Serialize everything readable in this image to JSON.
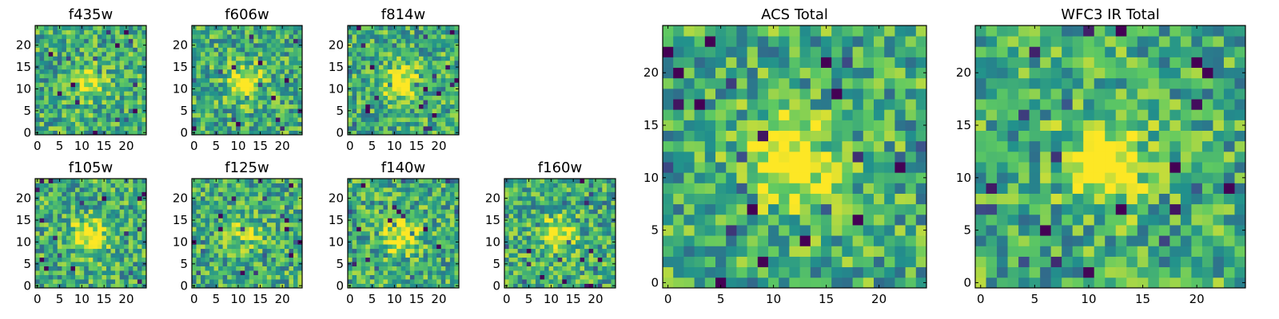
{
  "chart_data": [
    {
      "type": "heatmap",
      "title": "f435w",
      "grid_size": 25,
      "xticks": [
        0,
        5,
        10,
        15,
        20
      ],
      "yticks": [
        0,
        5,
        10,
        15,
        20
      ],
      "colormap": "viridis",
      "source_max": 0.35
    },
    {
      "type": "heatmap",
      "title": "f606w",
      "grid_size": 25,
      "xticks": [
        0,
        5,
        10,
        15,
        20
      ],
      "yticks": [
        0,
        5,
        10,
        15,
        20
      ],
      "colormap": "viridis",
      "source_max": 0.45
    },
    {
      "type": "heatmap",
      "title": "f814w",
      "grid_size": 25,
      "xticks": [
        0,
        5,
        10,
        15,
        20
      ],
      "yticks": [
        0,
        5,
        10,
        15,
        20
      ],
      "colormap": "viridis",
      "source_max": 0.5
    },
    {
      "type": "heatmap",
      "title": "f105w",
      "grid_size": 25,
      "xticks": [
        0,
        5,
        10,
        15,
        20
      ],
      "yticks": [
        0,
        5,
        10,
        15,
        20
      ],
      "colormap": "viridis",
      "source_max": 0.45
    },
    {
      "type": "heatmap",
      "title": "f125w",
      "grid_size": 25,
      "xticks": [
        0,
        5,
        10,
        15,
        20
      ],
      "yticks": [
        0,
        5,
        10,
        15,
        20
      ],
      "colormap": "viridis",
      "source_max": 0.25
    },
    {
      "type": "heatmap",
      "title": "f140w",
      "grid_size": 25,
      "xticks": [
        0,
        5,
        10,
        15,
        20
      ],
      "yticks": [
        0,
        5,
        10,
        15,
        20
      ],
      "colormap": "viridis",
      "source_max": 0.45
    },
    {
      "type": "heatmap",
      "title": "f160w",
      "grid_size": 25,
      "xticks": [
        0,
        5,
        10,
        15,
        20
      ],
      "yticks": [
        0,
        5,
        10,
        15,
        20
      ],
      "colormap": "viridis",
      "source_max": 0.45
    },
    {
      "type": "heatmap",
      "title": "ACS Total",
      "grid_size": 25,
      "xticks": [
        0,
        5,
        10,
        15,
        20
      ],
      "yticks": [
        0,
        5,
        10,
        15,
        20
      ],
      "colormap": "viridis",
      "source_max": 0.6
    },
    {
      "type": "heatmap",
      "title": "WFC3 IR Total",
      "grid_size": 25,
      "xticks": [
        0,
        5,
        10,
        15,
        20
      ],
      "yticks": [
        0,
        5,
        10,
        15,
        20
      ],
      "colormap": "viridis",
      "source_max": 0.55
    }
  ],
  "colors": {
    "viridis": [
      "#440154",
      "#3b528b",
      "#21918c",
      "#5ec962",
      "#fde725"
    ]
  }
}
